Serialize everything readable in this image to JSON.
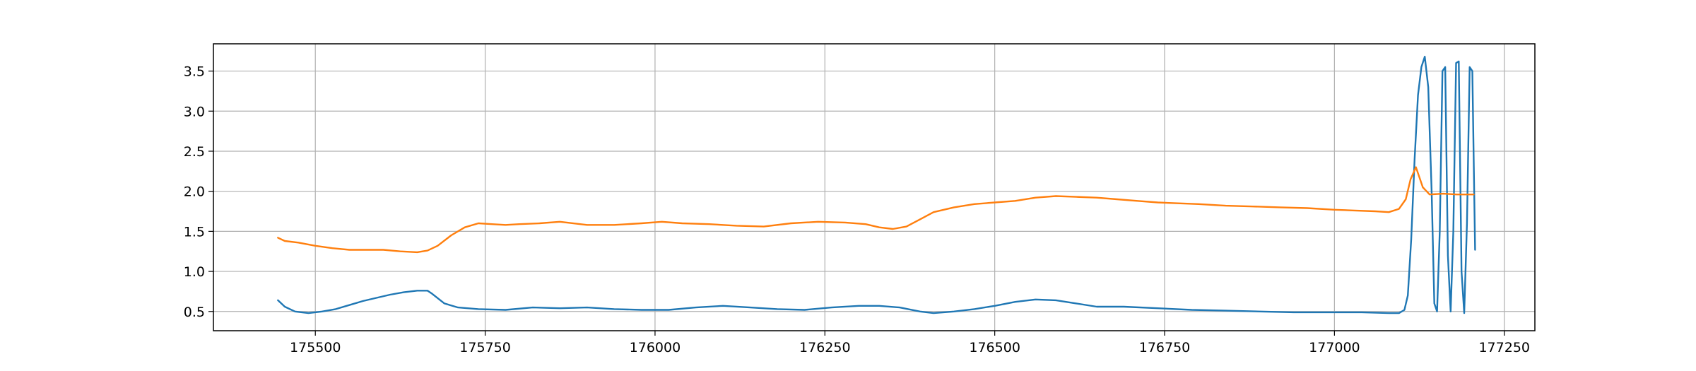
{
  "chart_data": {
    "type": "line",
    "title": "",
    "xlabel": "",
    "ylabel": "",
    "xlim": [
      175350,
      177295
    ],
    "ylim": [
      0.26,
      3.84
    ],
    "x_ticks": [
      175500,
      175750,
      176000,
      176250,
      176500,
      176750,
      177000,
      177250
    ],
    "y_ticks": [
      0.5,
      1.0,
      1.5,
      2.0,
      2.5,
      3.0,
      3.5
    ],
    "x_tick_labels": [
      "175500",
      "175750",
      "176000",
      "176250",
      "176500",
      "176750",
      "177000",
      "177250"
    ],
    "y_tick_labels": [
      "0.5",
      "1.0",
      "1.5",
      "2.0",
      "2.5",
      "3.0",
      "3.5"
    ],
    "grid": true,
    "legend": "none",
    "series": [
      {
        "color": "#1f77b4",
        "x": [
          175445,
          175455,
          175470,
          175490,
          175510,
          175530,
          175550,
          175570,
          175590,
          175610,
          175630,
          175650,
          175665,
          175672,
          175690,
          175710,
          175740,
          175780,
          175820,
          175860,
          175900,
          175940,
          175980,
          176020,
          176060,
          176100,
          176140,
          176180,
          176220,
          176260,
          176300,
          176330,
          176360,
          176390,
          176410,
          176440,
          176470,
          176500,
          176530,
          176560,
          176590,
          176620,
          176650,
          176690,
          176740,
          176790,
          176840,
          176890,
          176940,
          176990,
          177040,
          177080,
          177095,
          177103,
          177108,
          177113,
          177118,
          177123,
          177128,
          177133,
          177138,
          177143,
          177147,
          177151,
          177155,
          177159,
          177163,
          177167,
          177171,
          177175,
          177179,
          177183,
          177187,
          177191,
          177195,
          177199,
          177203,
          177207
        ],
        "y": [
          0.64,
          0.56,
          0.5,
          0.48,
          0.5,
          0.53,
          0.58,
          0.63,
          0.67,
          0.71,
          0.74,
          0.76,
          0.76,
          0.72,
          0.6,
          0.55,
          0.53,
          0.52,
          0.55,
          0.54,
          0.55,
          0.53,
          0.52,
          0.52,
          0.55,
          0.57,
          0.55,
          0.53,
          0.52,
          0.55,
          0.57,
          0.57,
          0.55,
          0.5,
          0.48,
          0.5,
          0.53,
          0.57,
          0.62,
          0.65,
          0.64,
          0.6,
          0.56,
          0.56,
          0.54,
          0.52,
          0.51,
          0.5,
          0.49,
          0.49,
          0.49,
          0.48,
          0.48,
          0.52,
          0.7,
          1.4,
          2.4,
          3.2,
          3.55,
          3.68,
          3.3,
          2.0,
          0.6,
          0.5,
          1.5,
          3.5,
          3.55,
          1.2,
          0.5,
          1.5,
          3.6,
          3.62,
          1.0,
          0.48,
          1.6,
          3.55,
          3.5,
          1.27
        ]
      },
      {
        "color": "#ff7f0e",
        "x": [
          175445,
          175455,
          175475,
          175500,
          175525,
          175550,
          175575,
          175600,
          175625,
          175650,
          175665,
          175680,
          175700,
          175720,
          175740,
          175760,
          175780,
          175800,
          175830,
          175860,
          175900,
          175940,
          175980,
          176010,
          176040,
          176080,
          176120,
          176160,
          176200,
          176240,
          176280,
          176310,
          176330,
          176350,
          176370,
          176390,
          176410,
          176440,
          176470,
          176500,
          176530,
          176560,
          176590,
          176620,
          176650,
          176680,
          176710,
          176740,
          176770,
          176800,
          176840,
          176880,
          176920,
          176960,
          177000,
          177030,
          177060,
          177080,
          177095,
          177105,
          177112,
          177120,
          177130,
          177140,
          177160,
          177180,
          177205
        ],
        "y": [
          1.42,
          1.38,
          1.36,
          1.32,
          1.29,
          1.27,
          1.27,
          1.27,
          1.25,
          1.24,
          1.26,
          1.32,
          1.45,
          1.55,
          1.6,
          1.59,
          1.58,
          1.59,
          1.6,
          1.62,
          1.58,
          1.58,
          1.6,
          1.62,
          1.6,
          1.59,
          1.57,
          1.56,
          1.6,
          1.62,
          1.61,
          1.59,
          1.55,
          1.53,
          1.56,
          1.65,
          1.74,
          1.8,
          1.84,
          1.86,
          1.88,
          1.92,
          1.94,
          1.93,
          1.92,
          1.9,
          1.88,
          1.86,
          1.85,
          1.84,
          1.82,
          1.81,
          1.8,
          1.79,
          1.77,
          1.76,
          1.75,
          1.74,
          1.78,
          1.9,
          2.15,
          2.3,
          2.05,
          1.96,
          1.97,
          1.96,
          1.96
        ]
      }
    ]
  }
}
